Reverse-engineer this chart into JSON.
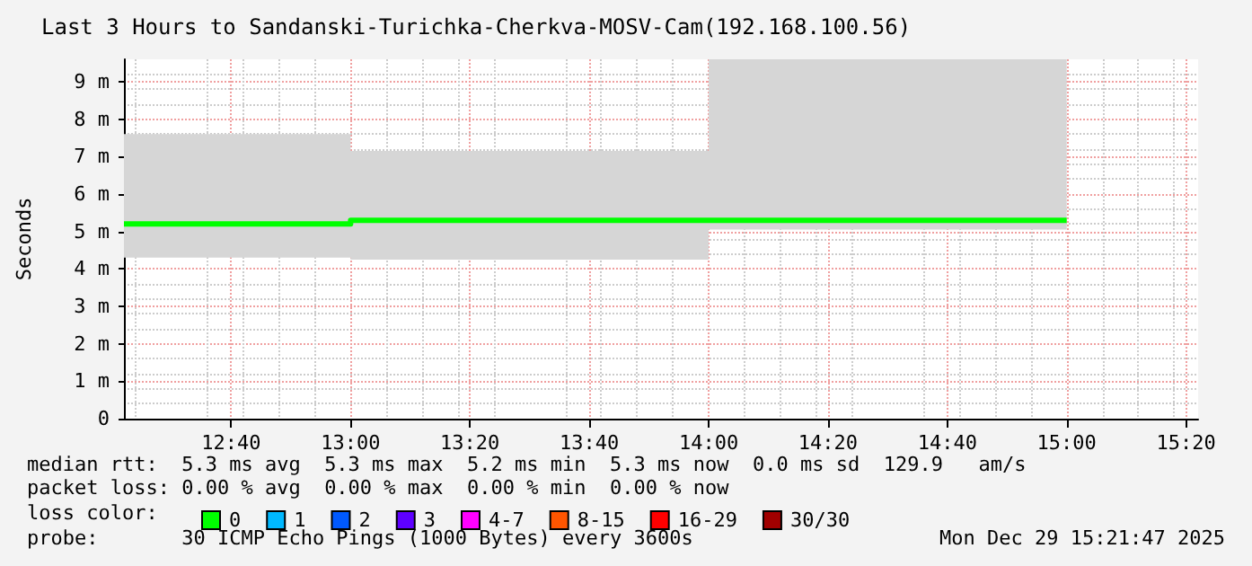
{
  "chart_data": {
    "type": "step",
    "title": "Last 3 Hours to Sandanski-Turichka-Cherkva-MOSV-Cam(192.168.100.56)",
    "ylabel": "Seconds",
    "legend_title": "loss color:",
    "x": [
      12.367,
      13,
      14,
      15
    ],
    "xlim": [
      12.367,
      15.367
    ],
    "xticks": [
      {
        "value": 12.6667,
        "label": "12:40"
      },
      {
        "value": 13,
        "label": "13:00"
      },
      {
        "value": 13.3333,
        "label": "13:20"
      },
      {
        "value": 13.6667,
        "label": "13:40"
      },
      {
        "value": 14,
        "label": "14:00"
      },
      {
        "value": 14.3333,
        "label": "14:20"
      },
      {
        "value": 14.6667,
        "label": "14:40"
      },
      {
        "value": 15,
        "label": "15:00"
      },
      {
        "value": 15.3333,
        "label": "15:20"
      }
    ],
    "ylim": [
      0,
      9.6
    ],
    "yticks": [
      0,
      {
        "value": 1,
        "label": "1 m"
      },
      {
        "value": 2,
        "label": "2 m"
      },
      {
        "value": 3,
        "label": "3 m"
      },
      {
        "value": 4,
        "label": "4 m"
      },
      {
        "value": 5,
        "label": "5 m"
      },
      {
        "value": 6,
        "label": "6 m"
      },
      {
        "value": 7,
        "label": "7 m"
      },
      {
        "value": 8,
        "label": "8 m"
      },
      {
        "value": 9,
        "label": "9 m"
      }
    ],
    "series": [
      {
        "name": "0",
        "color": "#00ff00",
        "values": [
          5.2,
          5.3,
          5.3,
          5.3
        ],
        "lower": [
          4.3,
          4.25,
          5.05,
          5.05
        ],
        "upper": [
          7.6,
          7.15,
          9.6,
          9.6
        ]
      },
      {
        "name": "1",
        "color": "#00b8ff",
        "values": [
          null,
          null,
          null,
          null
        ]
      },
      {
        "name": "2",
        "color": "#0059ff",
        "values": [
          null,
          null,
          null,
          null
        ]
      },
      {
        "name": "3",
        "color": "#5e00ff",
        "values": [
          null,
          null,
          null,
          null
        ]
      },
      {
        "name": "4-7",
        "color": "#ff00ff",
        "values": [
          null,
          null,
          null,
          null
        ]
      },
      {
        "name": "8-15",
        "color": "#ff5500",
        "values": [
          null,
          null,
          null,
          null
        ]
      },
      {
        "name": "16-29",
        "color": "#ff0000",
        "values": [
          null,
          null,
          null,
          null
        ]
      },
      {
        "name": "30/30",
        "color": "#a10000",
        "values": [
          null,
          null,
          null,
          null
        ]
      }
    ],
    "annotations": [
      "median rtt:  5.3 ms avg  5.3 ms max  5.2 ms min  5.3 ms now  0.0 ms sd  129.9   am/s",
      "packet loss: 0.00 % avg  0.00 % max  0.00 % min  0.00 % now",
      "probe:       30 ICMP Echo Pings (1000 Bytes) every 3600s",
      "Mon Dec 29 15:21:47 2025"
    ],
    "grid": true,
    "legend": "bottom"
  }
}
